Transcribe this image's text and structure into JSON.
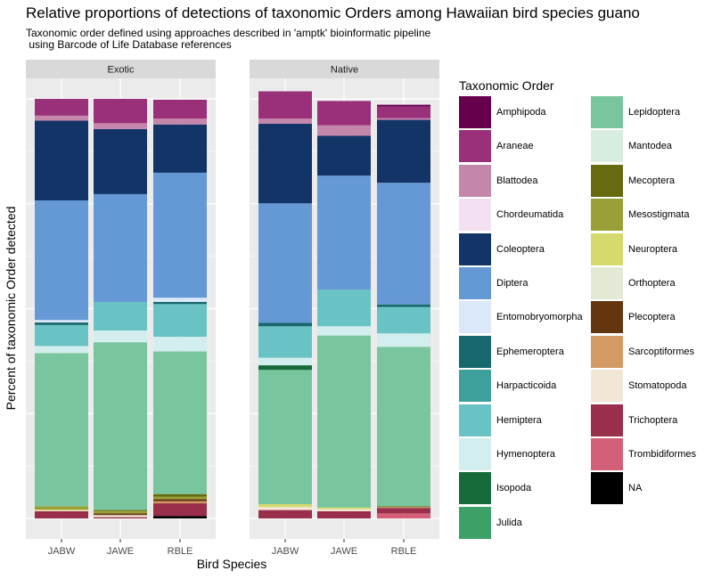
{
  "colors": {
    "Amphipoda": "#66004d",
    "Araneae": "#9a2f7a",
    "Blattodea": "#c586ac",
    "Chordeumatida": "#f3e1f2",
    "Coleoptera": "#123466",
    "Diptera": "#6599d6",
    "Entomobryomorpha": "#dae8f9",
    "Ephemeroptera": "#16686c",
    "Harpacticoida": "#3da09b",
    "Hemiptera": "#69c3c5",
    "Hymenoptera": "#d3eeee",
    "Isopoda": "#166a3a",
    "Julida": "#3ba166",
    "Lepidoptera": "#79c59d",
    "Mantodea": "#d8ecdf",
    "Mecoptera": "#666b10",
    "Mesostigmata": "#9aa037",
    "Neuroptera": "#d6d96c",
    "Orthoptera": "#e4e9d6",
    "Plecoptera": "#65350f",
    "Sarcoptiformes": "#d49a63",
    "Stomatopoda": "#f2e6d6",
    "Trichoptera": "#992f4a",
    "Trombidiformes": "#d35f79",
    "NA": "#000000"
  },
  "chart_data": {
    "type": "bar",
    "title": "Relative proportions of detections of taxonomic Orders among Hawaiian bird species guano",
    "subtitle": "Taxonomic order defined using approaches described in 'amptk' bioinformatic pipeline\n using Barcode of Life Database references",
    "xlabel": "Bird Species",
    "ylabel": "Percent of taxonomic Order detected",
    "ylim": [
      0,
      1
    ],
    "stacked": true,
    "categories": [
      "JABW",
      "JAWE",
      "RBLE"
    ],
    "legend_title": "Taxonomic Order",
    "legend_position": "right",
    "grid": true,
    "legend": [
      "Amphipoda",
      "Araneae",
      "Blattodea",
      "Chordeumatida",
      "Coleoptera",
      "Diptera",
      "Entomobryomorpha",
      "Ephemeroptera",
      "Harpacticoida",
      "Hemiptera",
      "Hymenoptera",
      "Isopoda",
      "Julida",
      "Lepidoptera",
      "Mantodea",
      "Mecoptera",
      "Mesostigmata",
      "Neuroptera",
      "Orthoptera",
      "Plecoptera",
      "Sarcoptiformes",
      "Stomatopoda",
      "Trichoptera",
      "Trombidiformes",
      "NA"
    ],
    "panels": [
      {
        "name": "Exotic",
        "bars": [
          {
            "category": "JABW",
            "segments": [
              {
                "order": "Araneae",
                "value": 0.04
              },
              {
                "order": "Blattodea",
                "value": 0.012
              },
              {
                "order": "Coleoptera",
                "value": 0.19
              },
              {
                "order": "Diptera",
                "value": 0.285
              },
              {
                "order": "Entomobryomorpha",
                "value": 0.006
              },
              {
                "order": "Ephemeroptera",
                "value": 0.006
              },
              {
                "order": "Hemiptera",
                "value": 0.05
              },
              {
                "order": "Hymenoptera",
                "value": 0.017
              },
              {
                "order": "Lepidoptera",
                "value": 0.365
              },
              {
                "order": "Mesostigmata",
                "value": 0.008
              },
              {
                "order": "Neuroptera",
                "value": 0.002
              },
              {
                "order": "Stomatopoda",
                "value": 0.002
              },
              {
                "order": "Trichoptera",
                "value": 0.017
              }
            ]
          },
          {
            "category": "JAWE",
            "segments": [
              {
                "order": "Araneae",
                "value": 0.058
              },
              {
                "order": "Blattodea",
                "value": 0.014
              },
              {
                "order": "Coleoptera",
                "value": 0.155
              },
              {
                "order": "Diptera",
                "value": 0.257
              },
              {
                "order": "Hemiptera",
                "value": 0.068
              },
              {
                "order": "Hymenoptera",
                "value": 0.028
              },
              {
                "order": "Lepidoptera",
                "value": 0.4
              },
              {
                "order": "Mecoptera",
                "value": 0.002
              },
              {
                "order": "Mesostigmata",
                "value": 0.006
              },
              {
                "order": "Plecoptera",
                "value": 0.004
              },
              {
                "order": "Stomatopoda",
                "value": 0.005
              },
              {
                "order": "Trichoptera",
                "value": 0.003
              }
            ]
          },
          {
            "category": "RBLE",
            "segments": [
              {
                "order": "Araneae",
                "value": 0.045
              },
              {
                "order": "Blattodea",
                "value": 0.014
              },
              {
                "order": "Coleoptera",
                "value": 0.115
              },
              {
                "order": "Diptera",
                "value": 0.298
              },
              {
                "order": "Entomobryomorpha",
                "value": 0.01
              },
              {
                "order": "Ephemeroptera",
                "value": 0.005
              },
              {
                "order": "Hemiptera",
                "value": 0.078
              },
              {
                "order": "Hymenoptera",
                "value": 0.035
              },
              {
                "order": "Lepidoptera",
                "value": 0.34
              },
              {
                "order": "Mecoptera",
                "value": 0.006
              },
              {
                "order": "Mesostigmata",
                "value": 0.006
              },
              {
                "order": "Plecoptera",
                "value": 0.005
              },
              {
                "order": "Sarcoptiformes",
                "value": 0.005
              },
              {
                "order": "Trichoptera",
                "value": 0.03
              },
              {
                "order": "NA",
                "value": 0.006
              }
            ]
          }
        ]
      },
      {
        "name": "Native",
        "bars": [
          {
            "category": "JABW",
            "segments": [
              {
                "order": "Araneae",
                "value": 0.065
              },
              {
                "order": "Blattodea",
                "value": 0.012
              },
              {
                "order": "Coleoptera",
                "value": 0.19
              },
              {
                "order": "Diptera",
                "value": 0.285
              },
              {
                "order": "Ephemeroptera",
                "value": 0.008
              },
              {
                "order": "Hemiptera",
                "value": 0.075
              },
              {
                "order": "Hymenoptera",
                "value": 0.018
              },
              {
                "order": "Isopoda",
                "value": 0.011
              },
              {
                "order": "Lepidoptera",
                "value": 0.32
              },
              {
                "order": "Neuroptera",
                "value": 0.007
              },
              {
                "order": "Stomatopoda",
                "value": 0.007
              },
              {
                "order": "Trichoptera",
                "value": 0.02
              }
            ]
          },
          {
            "category": "JAWE",
            "segments": [
              {
                "order": "Araneae",
                "value": 0.058
              },
              {
                "order": "Blattodea",
                "value": 0.025
              },
              {
                "order": "Coleoptera",
                "value": 0.095
              },
              {
                "order": "Diptera",
                "value": 0.272
              },
              {
                "order": "Hemiptera",
                "value": 0.087
              },
              {
                "order": "Hymenoptera",
                "value": 0.022
              },
              {
                "order": "Lepidoptera",
                "value": 0.41
              },
              {
                "order": "Neuroptera",
                "value": 0.004
              },
              {
                "order": "Stomatopoda",
                "value": 0.005
              },
              {
                "order": "Trichoptera",
                "value": 0.017
              }
            ]
          },
          {
            "category": "RBLE",
            "segments": [
              {
                "order": "Amphipoda",
                "value": 0.004
              },
              {
                "order": "Araneae",
                "value": 0.028
              },
              {
                "order": "Blattodea",
                "value": 0.004
              },
              {
                "order": "Coleoptera",
                "value": 0.15
              },
              {
                "order": "Diptera",
                "value": 0.29
              },
              {
                "order": "Ephemeroptera",
                "value": 0.006
              },
              {
                "order": "Hemiptera",
                "value": 0.063
              },
              {
                "order": "Hymenoptera",
                "value": 0.032
              },
              {
                "order": "Lepidoptera",
                "value": 0.38
              },
              {
                "order": "Mecoptera",
                "value": 0.002
              },
              {
                "order": "Sarcoptiformes",
                "value": 0.002
              },
              {
                "order": "Trichoptera",
                "value": 0.013
              },
              {
                "order": "Trombidiformes",
                "value": 0.012
              }
            ]
          }
        ]
      }
    ]
  }
}
